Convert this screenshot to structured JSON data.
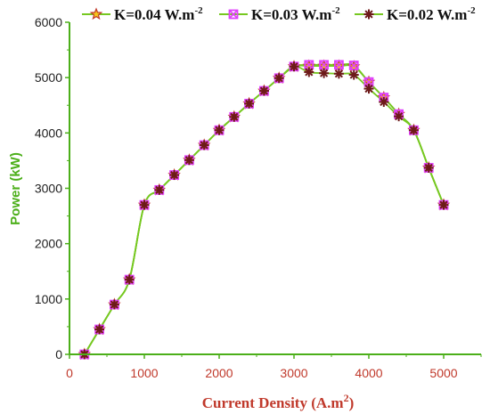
{
  "chart_data": {
    "type": "line",
    "xlabel_main": "Current Density (A.m",
    "xlabel_sup": "2",
    "xlabel_end": ")",
    "ylabel": "Power (kW)",
    "xlim": [
      0,
      5500
    ],
    "ylim": [
      0,
      6000
    ],
    "xticks": [
      "0",
      "1000",
      "2000",
      "3000",
      "4000",
      "5000"
    ],
    "yticks": [
      "0",
      "1000",
      "2000",
      "3000",
      "4000",
      "5000",
      "6000"
    ],
    "legend_position": "top",
    "series": [
      {
        "name_main": "K=0.04 W.m",
        "name_sup": "-2",
        "marker": "star",
        "marker_color": "#c0392b",
        "x": [
          200,
          400,
          600,
          800,
          1000,
          1200,
          1400,
          1600,
          1800,
          2000,
          2200,
          2400,
          2600,
          2800,
          3000,
          3200,
          3400,
          3600,
          3800,
          4000,
          4200,
          4400,
          4600,
          4800,
          5000
        ],
        "y": [
          0,
          450,
          900,
          1350,
          2700,
          2970,
          3240,
          3510,
          3780,
          4050,
          4290,
          4530,
          4760,
          4990,
          5200,
          5210,
          5210,
          5210,
          5200,
          4920,
          4640,
          4340,
          4050,
          3370,
          2700
        ]
      },
      {
        "name_main": "K=0.03 W.m",
        "name_sup": "-2",
        "marker": "square-x",
        "marker_color": "#e040fb",
        "x": [
          200,
          400,
          600,
          800,
          1000,
          1200,
          1400,
          1600,
          1800,
          2000,
          2200,
          2400,
          2600,
          2800,
          3000,
          3200,
          3400,
          3600,
          3800,
          4000,
          4200,
          4400,
          4600,
          4800,
          5000
        ],
        "y": [
          0,
          450,
          900,
          1350,
          2700,
          2970,
          3240,
          3510,
          3780,
          4050,
          4290,
          4530,
          4760,
          4990,
          5200,
          5230,
          5230,
          5230,
          5220,
          4920,
          4640,
          4340,
          4050,
          3370,
          2700
        ]
      },
      {
        "name_main": "K=0.02 W.m",
        "name_sup": "-2",
        "marker": "asterisk",
        "marker_color": "#6d1a1a",
        "x": [
          200,
          400,
          600,
          800,
          1000,
          1200,
          1400,
          1600,
          1800,
          2000,
          2200,
          2400,
          2600,
          2800,
          3000,
          3200,
          3400,
          3600,
          3800,
          4000,
          4200,
          4400,
          4600,
          4800,
          5000
        ],
        "y": [
          0,
          450,
          900,
          1350,
          2700,
          2970,
          3240,
          3510,
          3780,
          4050,
          4290,
          4530,
          4760,
          4990,
          5200,
          5100,
          5080,
          5070,
          5050,
          4800,
          4560,
          4300,
          4050,
          3370,
          2700
        ]
      }
    ],
    "colors": {
      "line": "#76c820",
      "axis": "#4caf1a",
      "tick_label_x": "#c0392b",
      "label_y": "#4caf1a",
      "label_x": "#c0392b"
    }
  }
}
